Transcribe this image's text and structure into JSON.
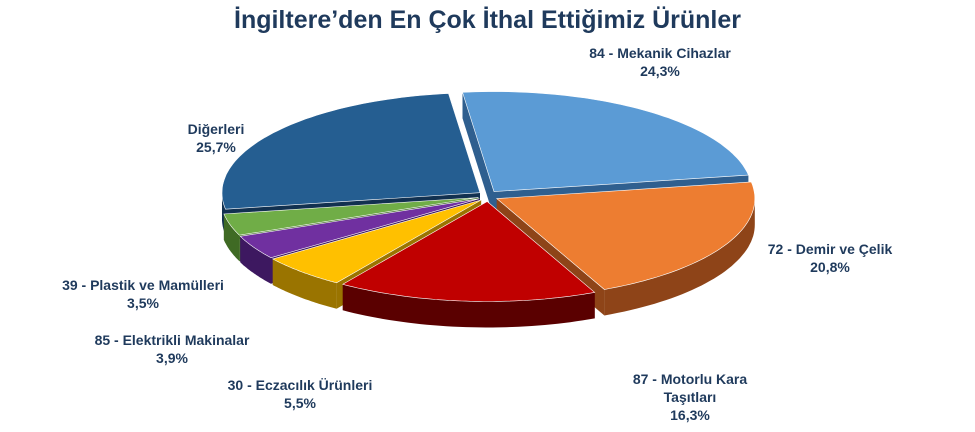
{
  "chart_data": {
    "type": "pie",
    "title": "İngiltere’den En Çok İthal Ettiğimiz Ürünler",
    "slices": [
      {
        "label": [
          "84 - Mekanik Cihazlar"
        ],
        "value": 24.3,
        "value_label": "24,3%",
        "color": "#5b9bd5",
        "side": "#2f5f8f"
      },
      {
        "label": [
          "72 - Demir ve Çelik"
        ],
        "value": 20.8,
        "value_label": "20,8%",
        "color": "#ed7d31",
        "side": "#8e4418"
      },
      {
        "label": [
          "87 - Motorlu Kara",
          "Taşıtları"
        ],
        "value": 16.3,
        "value_label": "16,3%",
        "color": "#c00000",
        "side": "#5a0000"
      },
      {
        "label": [
          "30 - Eczacılık Ürünleri"
        ],
        "value": 5.5,
        "value_label": "5,5%",
        "color": "#ffc000",
        "side": "#9a7400"
      },
      {
        "label": [
          "85 - Elektrikli Makinalar"
        ],
        "value": 3.9,
        "value_label": "3,9%",
        "color": "#7030a0",
        "side": "#3d1860"
      },
      {
        "label": [
          "39 - Plastik ve Mamülleri"
        ],
        "value": 3.5,
        "value_label": "3,5%",
        "color": "#70ad47",
        "side": "#3f6a24"
      },
      {
        "label": [
          "Diğerleri"
        ],
        "value": 25.7,
        "value_label": "25,7%",
        "color": "#255e91",
        "side": "#123150"
      }
    ]
  }
}
